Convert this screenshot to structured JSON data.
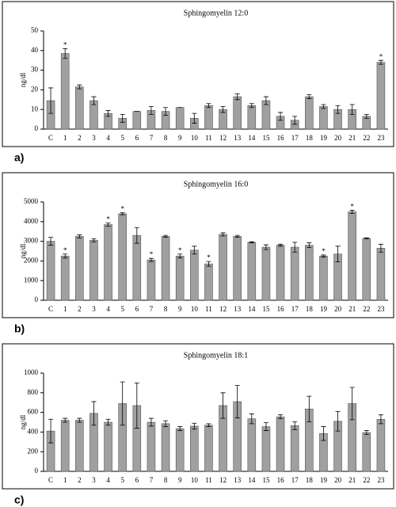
{
  "chart_data": [
    {
      "type": "bar",
      "title": "Sphingomyelin 12:0",
      "panel_label": "a)",
      "y_label": "ng/dl",
      "categories": [
        "C",
        "1",
        "2",
        "3",
        "4",
        "5",
        "6",
        "7",
        "8",
        "9",
        "10",
        "11",
        "12",
        "13",
        "14",
        "15",
        "16",
        "17",
        "18",
        "19",
        "20",
        "21",
        "22",
        "23"
      ],
      "values": [
        14.5,
        38.5,
        21.5,
        14.5,
        8,
        5.5,
        9,
        9.5,
        9,
        11,
        5.5,
        12,
        10,
        16.5,
        12,
        14.5,
        6.5,
        4.5,
        16.5,
        11.5,
        10,
        10,
        6.5,
        34
      ],
      "errors": [
        6.5,
        2.5,
        1,
        2,
        1.5,
        2,
        0,
        2,
        2,
        0,
        2.5,
        1,
        1.5,
        1.5,
        1,
        2,
        2,
        2,
        1,
        1,
        2,
        2.5,
        1,
        1
      ],
      "stars": [
        null,
        "*",
        null,
        null,
        null,
        null,
        null,
        null,
        null,
        null,
        null,
        null,
        null,
        null,
        null,
        null,
        null,
        null,
        null,
        null,
        null,
        null,
        null,
        "*"
      ],
      "color": "#a0a0a0",
      "ylim": [
        0,
        50
      ],
      "yticks": [
        0,
        10,
        20,
        30,
        40,
        50
      ]
    },
    {
      "type": "bar",
      "title": "Sphingomyelin 16:0",
      "panel_label": "b)",
      "y_label": "ng/dl",
      "categories": [
        "C",
        "1",
        "2",
        "3",
        "4",
        "5",
        "6",
        "7",
        "8",
        "9",
        "10",
        "11",
        "12",
        "13",
        "14",
        "15",
        "16",
        "17",
        "18",
        "19",
        "20",
        "21",
        "22",
        "23"
      ],
      "values": [
        3000,
        2250,
        3250,
        3050,
        3850,
        4400,
        3300,
        2050,
        3250,
        2250,
        2550,
        1850,
        3350,
        3250,
        2950,
        2700,
        2800,
        2700,
        2800,
        2250,
        2350,
        4500,
        3150,
        2650
      ],
      "errors": [
        200,
        100,
        80,
        80,
        80,
        50,
        400,
        80,
        50,
        100,
        200,
        120,
        80,
        50,
        30,
        120,
        50,
        250,
        120,
        50,
        400,
        80,
        30,
        200
      ],
      "stars": [
        null,
        "*",
        null,
        null,
        "*",
        "*",
        null,
        "*",
        null,
        "*",
        null,
        "*",
        null,
        null,
        null,
        null,
        null,
        null,
        null,
        "*",
        null,
        "*",
        null,
        null
      ],
      "color": "#a0a0a0",
      "ylim": [
        0,
        5000
      ],
      "yticks": [
        0,
        1000,
        2000,
        3000,
        4000,
        5000
      ]
    },
    {
      "type": "bar",
      "title": "Sphingomyelin 18:1",
      "panel_label": "c)",
      "y_label": "ng/dl",
      "categories": [
        "C",
        "1",
        "2",
        "3",
        "4",
        "5",
        "6",
        "7",
        "8",
        "9",
        "10",
        "11",
        "12",
        "13",
        "14",
        "15",
        "16",
        "17",
        "18",
        "19",
        "20",
        "21",
        "22",
        "23"
      ],
      "values": [
        410,
        520,
        520,
        590,
        500,
        690,
        670,
        500,
        485,
        435,
        460,
        470,
        670,
        710,
        535,
        455,
        555,
        465,
        635,
        385,
        510,
        690,
        395,
        530
      ],
      "errors": [
        120,
        20,
        20,
        120,
        30,
        220,
        230,
        40,
        30,
        20,
        30,
        15,
        130,
        165,
        50,
        40,
        20,
        40,
        130,
        70,
        100,
        165,
        20,
        45
      ],
      "color": "#a0a0a0",
      "ylim": [
        0,
        1000
      ],
      "yticks": [
        0,
        200,
        400,
        600,
        800,
        1000
      ]
    }
  ]
}
